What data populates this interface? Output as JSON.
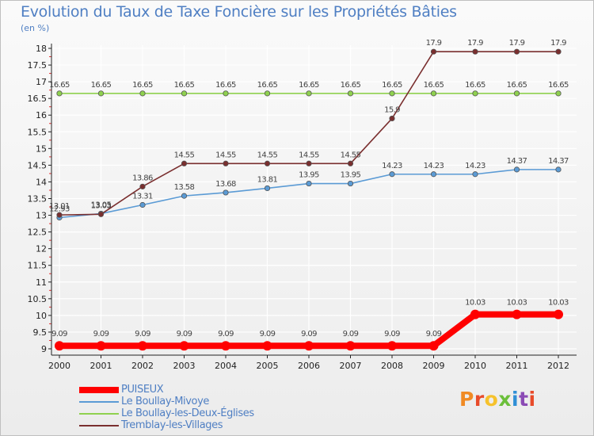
{
  "title": "Evolution du Taux de Taxe Foncière sur les Propriétés Bâties",
  "unit_label": "(en %)",
  "logo": {
    "text": "Proxiti",
    "colors": [
      "#f08a24",
      "#e84b2a",
      "#f6c22c",
      "#6bbf3a",
      "#2f8fd6",
      "#8b4bb5",
      "#e84b2a"
    ]
  },
  "chart_data": {
    "type": "line",
    "title": "Evolution du Taux de Taxe Foncière sur les Propriétés Bâties",
    "ylabel": "(en %)",
    "xlabel": "",
    "categories": [
      "2000",
      "2001",
      "2002",
      "2003",
      "2004",
      "2005",
      "2006",
      "2007",
      "2008",
      "2009",
      "2010",
      "2011",
      "2012"
    ],
    "ylim": [
      9,
      18
    ],
    "yticks": [
      "9",
      "9.5",
      "10",
      "10.5",
      "11",
      "11.5",
      "12",
      "12.5",
      "13",
      "13.5",
      "14",
      "14.5",
      "15",
      "15.5",
      "16",
      "16.5",
      "17",
      "17.5",
      "18"
    ],
    "legend_position": "bottom-left",
    "series": [
      {
        "name": "PUISEUX",
        "color": "#ff0000",
        "values": [
          9.09,
          9.09,
          9.09,
          9.09,
          9.09,
          9.09,
          9.09,
          9.09,
          9.09,
          9.09,
          10.03,
          10.03,
          10.03
        ],
        "labels": [
          "9.09",
          "9.09",
          "9.09",
          "9.09",
          "9.09",
          "9.09",
          "9.09",
          "9.09",
          "9.09",
          "9.09",
          "10.03",
          "10.03",
          "10.03"
        ]
      },
      {
        "name": "Le Boullay-Mivoye",
        "color": "#5b9bd5",
        "values": [
          12.93,
          13.05,
          13.31,
          13.58,
          13.68,
          13.81,
          13.95,
          13.95,
          14.23,
          14.23,
          14.23,
          14.37,
          14.37
        ],
        "labels": [
          "12.93",
          "13.05",
          "13.31",
          "13.58",
          "13.68",
          "13.81",
          "13.95",
          "13.95",
          "14.23",
          "14.23",
          "14.23",
          "14.37",
          "14.37"
        ]
      },
      {
        "name": "Le Boullay-les-Deux-Églises",
        "color": "#8fd14f",
        "values": [
          16.65,
          16.65,
          16.65,
          16.65,
          16.65,
          16.65,
          16.65,
          16.65,
          16.65,
          16.65,
          16.65,
          16.65,
          16.65
        ],
        "labels": [
          "16.65",
          "16.65",
          "16.65",
          "16.65",
          "16.65",
          "16.65",
          "16.65",
          "16.65",
          "16.65",
          "16.65",
          "16.65",
          "16.65",
          "16.65"
        ]
      },
      {
        "name": "Tremblay-les-Villages",
        "color": "#7a2f2f",
        "values": [
          13.01,
          13.03,
          13.86,
          14.55,
          14.55,
          14.55,
          14.55,
          14.55,
          15.9,
          17.9,
          17.9,
          17.9,
          17.9
        ],
        "labels": [
          "13.01",
          "13.03",
          "13.86",
          "14.55",
          "14.55",
          "14.55",
          "14.55",
          "14.55",
          "15.9",
          "17.9",
          "17.9",
          "17.9",
          "17.9"
        ]
      }
    ]
  }
}
